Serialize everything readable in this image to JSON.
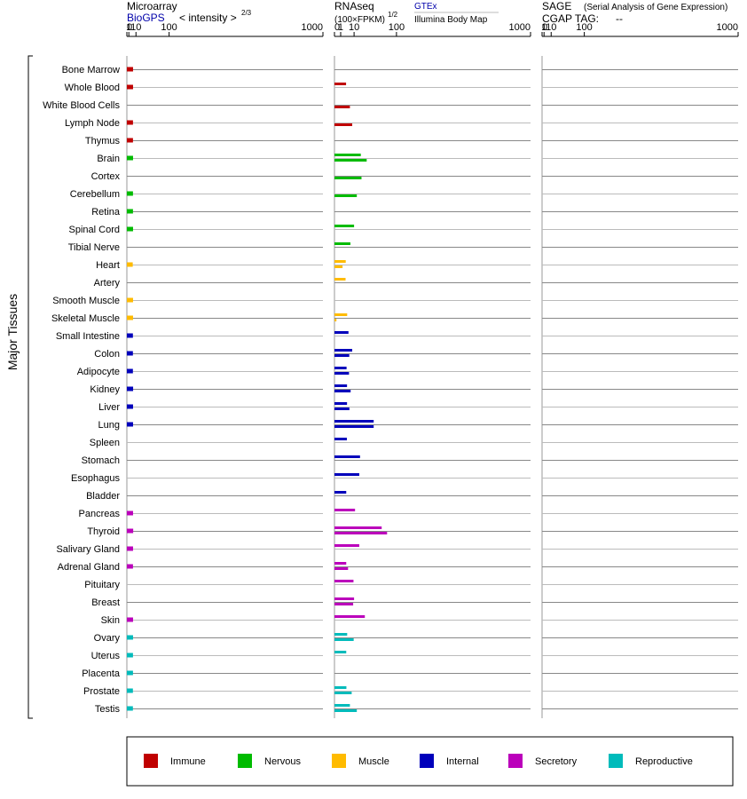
{
  "headers": {
    "microarray": {
      "title": "Microarray",
      "source": "BioGPS",
      "unit": "< intensity >",
      "unit_exp": "2/3"
    },
    "rnaseq": {
      "title": "RNAseq",
      "unit": "(100×FPKM)",
      "unit_exp": "1/2",
      "source1": "GTEx",
      "source2": "Illumina Body Map"
    },
    "sage": {
      "title": "SAGE",
      "subtitle": "(Serial Analysis of Gene Expression)",
      "tag_label": "CGAP TAG:",
      "tag_value": "--"
    }
  },
  "yaxis_label": "Major Tissues",
  "tick_labels": [
    "0",
    "1",
    "10",
    "100",
    "1000"
  ],
  "colors": {
    "Immune": "#c00000",
    "Nervous": "#00bb00",
    "Muscle": "#ffbb00",
    "Internal": "#0000bb",
    "Secretory": "#bb00bb",
    "Reproductive": "#00bbbb"
  },
  "legend": [
    "Immune",
    "Nervous",
    "Muscle",
    "Internal",
    "Secretory",
    "Reproductive"
  ],
  "chart_data": {
    "type": "bar",
    "scale": "intensity^(2/3) for microarray; (100xFPKM)^(1/2) for RNAseq",
    "xlim": [
      0,
      1000
    ],
    "tissues": [
      {
        "name": "Bone Marrow",
        "group": "Immune",
        "microarray": [
          5.6
        ],
        "gtex": null,
        "ibm": null
      },
      {
        "name": "Whole Blood",
        "group": "Immune",
        "microarray": [
          5.6
        ],
        "gtex": 3.5,
        "ibm": null
      },
      {
        "name": "White Blood Cells",
        "group": "Immune",
        "microarray": [],
        "gtex": null,
        "ibm": 6.2
      },
      {
        "name": "Lymph Node",
        "group": "Immune",
        "microarray": [
          5.5
        ],
        "gtex": null,
        "ibm": 8.2
      },
      {
        "name": "Thymus",
        "group": "Immune",
        "microarray": [
          5.5
        ],
        "gtex": null,
        "ibm": null
      },
      {
        "name": "Brain",
        "group": "Nervous",
        "microarray": [
          5.6
        ],
        "gtex": 18,
        "ibm": 27
      },
      {
        "name": "Cortex",
        "group": "Nervous",
        "microarray": [],
        "gtex": null,
        "ibm": 19
      },
      {
        "name": "Cerebellum",
        "group": "Nervous",
        "microarray": [
          5.5
        ],
        "gtex": null,
        "ibm": 13
      },
      {
        "name": "Retina",
        "group": "Nervous",
        "microarray": [
          5.5
        ],
        "gtex": null,
        "ibm": null
      },
      {
        "name": "Spinal Cord",
        "group": "Nervous",
        "microarray": [
          5.6
        ],
        "gtex": 10,
        "ibm": null
      },
      {
        "name": "Tibial Nerve",
        "group": "Nervous",
        "microarray": [],
        "gtex": 6.6,
        "ibm": null
      },
      {
        "name": "Heart",
        "group": "Muscle",
        "microarray": [
          5.2
        ],
        "gtex": 3.3,
        "ibm": 1.7
      },
      {
        "name": "Artery",
        "group": "Muscle",
        "microarray": [],
        "gtex": 3.2,
        "ibm": null
      },
      {
        "name": "Smooth Muscle",
        "group": "Muscle",
        "microarray": [
          5.6
        ],
        "gtex": null,
        "ibm": null
      },
      {
        "name": "Skeletal Muscle",
        "group": "Muscle",
        "microarray": [
          5.6
        ],
        "gtex": 4.2,
        "ibm": 0.1
      },
      {
        "name": "Small Intestine",
        "group": "Internal",
        "microarray": [
          5.4
        ],
        "gtex": 5.1,
        "ibm": null
      },
      {
        "name": "Colon",
        "group": "Internal",
        "microarray": [
          5.4
        ],
        "gtex": 8.2,
        "ibm": 5.7
      },
      {
        "name": "Adipocyte",
        "group": "Internal",
        "microarray": [
          5.4
        ],
        "gtex": 3.8,
        "ibm": 5.5
      },
      {
        "name": "Kidney",
        "group": "Internal",
        "microarray": [
          5.7
        ],
        "gtex": 4.1,
        "ibm": 6.8
      },
      {
        "name": "Liver",
        "group": "Internal",
        "microarray": [
          5.6
        ],
        "gtex": 4.1,
        "ibm": 5.8
      },
      {
        "name": "Lung",
        "group": "Internal",
        "microarray": [
          5.6
        ],
        "gtex": 40,
        "ibm": 40
      },
      {
        "name": "Spleen",
        "group": "Internal",
        "microarray": [],
        "gtex": 4.0,
        "ibm": null
      },
      {
        "name": "Stomach",
        "group": "Internal",
        "microarray": [],
        "gtex": 17,
        "ibm": null
      },
      {
        "name": "Esophagus",
        "group": "Internal",
        "microarray": [],
        "gtex": 16,
        "ibm": null
      },
      {
        "name": "Bladder",
        "group": "Internal",
        "microarray": [],
        "gtex": 3.6,
        "ibm": null
      },
      {
        "name": "Pancreas",
        "group": "Secretory",
        "microarray": [
          5.6
        ],
        "gtex": 11,
        "ibm": null
      },
      {
        "name": "Thyroid",
        "group": "Secretory",
        "microarray": [
          5.8
        ],
        "gtex": 58,
        "ibm": 72
      },
      {
        "name": "Salivary Gland",
        "group": "Secretory",
        "microarray": [
          5.6
        ],
        "gtex": 16,
        "ibm": null
      },
      {
        "name": "Adrenal Gland",
        "group": "Secretory",
        "microarray": [
          5.5
        ],
        "gtex": 3.6,
        "ibm": 4.8
      },
      {
        "name": "Pituitary",
        "group": "Secretory",
        "microarray": [],
        "gtex": 9.4,
        "ibm": null
      },
      {
        "name": "Breast",
        "group": "Secretory",
        "microarray": [],
        "gtex": 10,
        "ibm": 9.1
      },
      {
        "name": "Skin",
        "group": "Secretory",
        "microarray": [
          5.6
        ],
        "gtex": 24,
        "ibm": null
      },
      {
        "name": "Ovary",
        "group": "Reproductive",
        "microarray": [
          5.6
        ],
        "gtex": 4.2,
        "ibm": 9.6
      },
      {
        "name": "Uterus",
        "group": "Reproductive",
        "microarray": [
          5.5
        ],
        "gtex": 3.6,
        "ibm": null
      },
      {
        "name": "Placenta",
        "group": "Reproductive",
        "microarray": [
          5.5
        ],
        "gtex": null,
        "ibm": null
      },
      {
        "name": "Prostate",
        "group": "Reproductive",
        "microarray": [
          5.4
        ],
        "gtex": 3.7,
        "ibm": 7.7
      },
      {
        "name": "Testis",
        "group": "Reproductive",
        "microarray": [
          5.4
        ],
        "gtex": 6.2,
        "ibm": 13
      }
    ]
  }
}
